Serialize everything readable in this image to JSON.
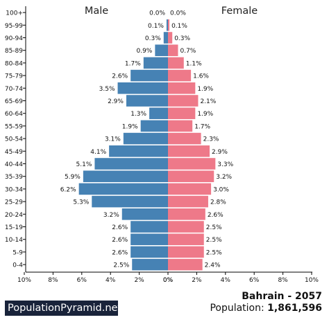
{
  "chart_data": {
    "type": "bar",
    "orientation": "horizontal-pyramid",
    "left_title": "Male",
    "right_title": "Female",
    "categories": [
      "100+",
      "95-99",
      "90-94",
      "85-89",
      "80-84",
      "75-79",
      "70-74",
      "65-69",
      "60-64",
      "55-59",
      "50-54",
      "45-49",
      "40-44",
      "35-39",
      "30-34",
      "25-29",
      "20-24",
      "15-19",
      "10-14",
      "5-9",
      "0-4"
    ],
    "series": [
      {
        "name": "Male",
        "color": "#4682b4",
        "values": [
          0.0,
          0.1,
          0.3,
          0.9,
          1.7,
          2.6,
          3.5,
          2.9,
          1.3,
          1.9,
          3.1,
          4.1,
          5.1,
          5.9,
          6.2,
          5.3,
          3.2,
          2.6,
          2.6,
          2.6,
          2.5
        ]
      },
      {
        "name": "Female",
        "color": "#ee7989",
        "values": [
          0.0,
          0.1,
          0.3,
          0.7,
          1.1,
          1.6,
          1.9,
          2.1,
          1.9,
          1.7,
          2.3,
          2.9,
          3.3,
          3.2,
          3.0,
          2.8,
          2.6,
          2.5,
          2.5,
          2.5,
          2.4
        ]
      }
    ],
    "xlim": [
      0,
      10
    ],
    "x_ticks": [
      10,
      8,
      6,
      4,
      2,
      0
    ],
    "x_tick_unit": "%"
  },
  "footer": {
    "brand": "PopulationPyramid.net",
    "country_year": "Bahrain - 2057",
    "population_label": "Population:",
    "population_value": "1,861,596"
  }
}
